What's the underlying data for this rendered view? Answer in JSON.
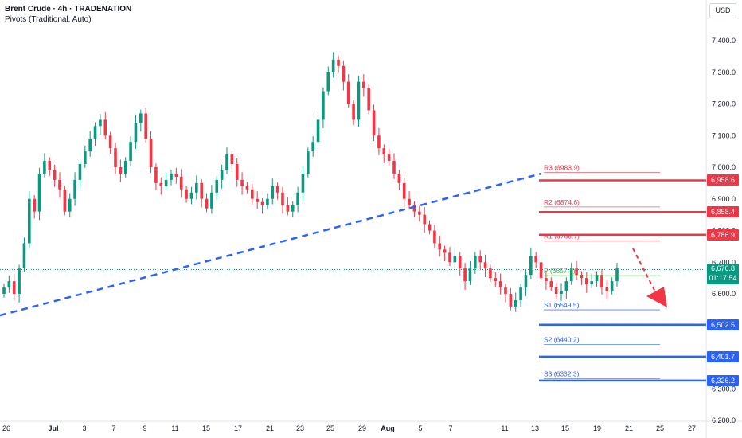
{
  "header": {
    "title": "Brent Crude · 4h · TRADENATION",
    "indicator": "Pivots (Traditional, Auto)",
    "currency_button": "USD"
  },
  "price_tag": {
    "value": "6,676.8",
    "countdown": "01:17:54"
  },
  "level_tags": [
    {
      "label": "6,958.6",
      "price": 6958.6,
      "color": "#f23645"
    },
    {
      "label": "6,858.4",
      "price": 6858.4,
      "color": "#f23645"
    },
    {
      "label": "6,786.9",
      "price": 6786.9,
      "color": "#f23645"
    },
    {
      "label": "6,502.5",
      "price": 6502.5,
      "color": "#2962ff"
    },
    {
      "label": "6,401.7",
      "price": 6401.7,
      "color": "#2962ff"
    },
    {
      "label": "6,326.2",
      "price": 6326.2,
      "color": "#2962ff"
    }
  ],
  "colors": {
    "up": "#089981",
    "down": "#f23645",
    "resistance": "#f23645",
    "support": "#2962ff",
    "pivot": "#4caf50",
    "trendline": "#2962ff",
    "arrow": "#f23645"
  },
  "chart_data": {
    "type": "candlestick",
    "title": "Brent Crude",
    "timeframe": "4h",
    "ylim": [
      6200,
      7500
    ],
    "y_ticks": [
      7400,
      7300,
      7200,
      7100,
      7000,
      6900,
      6800,
      6700,
      6600,
      6500,
      6400,
      6300,
      6200
    ],
    "y_tick_labels": [
      "7,400.0",
      "7,300.0",
      "7,200.0",
      "7,100.0",
      "7,000.0",
      "6,900.0",
      "6,800.0",
      "6,700.0",
      "6,600.0",
      "6,500.0",
      "6,400.0",
      "6,300.0",
      "6,200.0"
    ],
    "x_ticks": [
      "26",
      "Jul",
      "3",
      "7",
      "9",
      "11",
      "15",
      "17",
      "21",
      "23",
      "25",
      "29",
      "Aug",
      "5",
      "7",
      "11",
      "13",
      "15",
      "19",
      "21",
      "25",
      "27"
    ],
    "last_price": 6676.8,
    "pivots": [
      {
        "label": "R3",
        "value": 6983.9
      },
      {
        "label": "R2",
        "value": 6874.6
      },
      {
        "label": "R1",
        "value": 6766.7
      },
      {
        "label": "P",
        "value": 6657.4
      },
      {
        "label": "S1",
        "value": 6549.5
      },
      {
        "label": "S2",
        "value": 6440.2
      },
      {
        "label": "S3",
        "value": 6332.3
      }
    ],
    "horizontal_levels": {
      "resistance": [
        6958.6,
        6858.4,
        6786.9
      ],
      "support": [
        6502.5,
        6401.7,
        6326.2
      ]
    },
    "trendline": {
      "from_date": "Jun 26",
      "from_price": 6540,
      "to_date": "Aug 15",
      "to_price": 6980
    },
    "projection_arrow": "down",
    "candle_closes": [
      6620,
      6640,
      6600,
      6680,
      6760,
      6900,
      6860,
      6980,
      7020,
      6990,
      6960,
      6930,
      6860,
      6900,
      6960,
      7010,
      7050,
      7090,
      7130,
      7150,
      7100,
      7060,
      7000,
      6980,
      7020,
      7080,
      7140,
      7170,
      7090,
      7000,
      6950,
      6940,
      6960,
      6980,
      6970,
      6930,
      6900,
      6920,
      6950,
      6900,
      6870,
      6920,
      6960,
      6990,
      7040,
      7010,
      6960,
      6940,
      6930,
      6900,
      6890,
      6880,
      6900,
      6940,
      6920,
      6880,
      6860,
      6880,
      6920,
      6980,
      7050,
      7080,
      7150,
      7240,
      7300,
      7340,
      7320,
      7270,
      7200,
      7150,
      7270,
      7250,
      7180,
      7100,
      7060,
      7040,
      7020,
      6980,
      6950,
      6900,
      6880,
      6860,
      6850,
      6820,
      6800,
      6760,
      6740,
      6730,
      6700,
      6720,
      6680,
      6640,
      6680,
      6720,
      6700,
      6680,
      6650,
      6640,
      6620,
      6600,
      6560,
      6580,
      6620,
      6660,
      6720,
      6700,
      6650,
      6640,
      6620,
      6600,
      6610,
      6640,
      6680,
      6660,
      6650,
      6630,
      6640,
      6660,
      6620,
      6610,
      6640,
      6680
    ]
  }
}
